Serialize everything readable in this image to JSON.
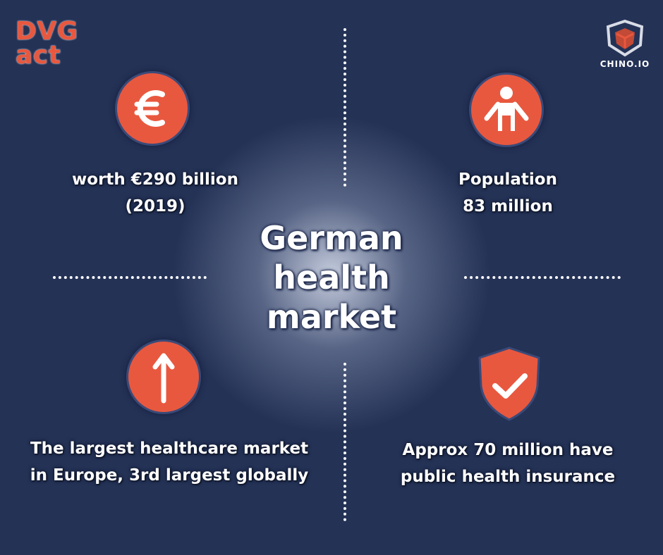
{
  "brand": {
    "dvg_line1": "DVG",
    "dvg_line2": "act",
    "chino": "CHINO.IO"
  },
  "title": {
    "line1": "German",
    "line2": "health",
    "line3": "market"
  },
  "facts": {
    "worth": {
      "line1": "worth €290 billion",
      "line2": "(2019)",
      "icon": "euro-icon"
    },
    "population": {
      "line1": "Population",
      "line2": "83 million",
      "icon": "person-icon"
    },
    "largest": {
      "line1": "The largest healthcare market",
      "line2": "in Europe, 3rd largest globally",
      "icon": "arrow-up-icon"
    },
    "insurance": {
      "line1": "Approx 70 million have",
      "line2": "public health insurance",
      "icon": "shield-check-icon"
    }
  },
  "colors": {
    "background": "#243256",
    "accent": "#e8583f",
    "text": "#ffffff"
  }
}
